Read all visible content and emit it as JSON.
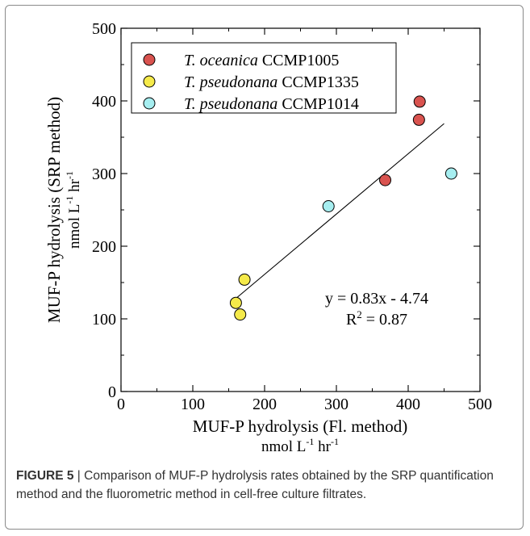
{
  "chart_data": {
    "type": "scatter",
    "xlabel": "MUF-P hydrolysis (Fl. method)",
    "xunit": {
      "base": "nmol L",
      "exp1": "-1",
      "mid": " hr",
      "exp2": "-1"
    },
    "ylabel": "MUF-P hydrolysis (SRP method)",
    "yunit": {
      "base": "nmol L",
      "exp1": "-1",
      "mid": " hr",
      "exp2": "-1"
    },
    "xlim": [
      0,
      500
    ],
    "ylim": [
      0,
      500
    ],
    "xticks": [
      "0",
      "100",
      "200",
      "300",
      "400",
      "500"
    ],
    "yticks": [
      "0",
      "100",
      "200",
      "300",
      "400",
      "500"
    ],
    "grid": false,
    "legend_position": "top-left",
    "series": [
      {
        "name_italic": "T. oceanica",
        "name_rest": "CCMP1005",
        "color": "#d9534f",
        "points": [
          {
            "x": 368,
            "y": 291
          },
          {
            "x": 416,
            "y": 399
          },
          {
            "x": 415,
            "y": 374
          }
        ]
      },
      {
        "name_italic": "T. pseudonana",
        "name_rest": "CCMP1335",
        "color": "#f5ea4a",
        "points": [
          {
            "x": 172,
            "y": 154
          },
          {
            "x": 160,
            "y": 122
          },
          {
            "x": 166,
            "y": 106
          }
        ]
      },
      {
        "name_italic": "T. pseudonana",
        "name_rest": "CCMP1014",
        "color": "#a6eef0",
        "points": [
          {
            "x": 289,
            "y": 255
          },
          {
            "x": 460,
            "y": 300
          }
        ]
      }
    ],
    "fit": {
      "slope": 0.83,
      "intercept": -4.74,
      "x_range": [
        160,
        450
      ]
    },
    "annotation_eq": "y = 0.83x - 4.74",
    "annotation_r2": {
      "base": "R",
      "exp": "2",
      "rest": " = 0.87"
    }
  },
  "caption": {
    "label": "FIGURE 5",
    "separator": " | ",
    "text": "Comparison of MUF-P hydrolysis rates obtained by the SRP quantification method and the fluorometric method in cell-free culture filtrates."
  }
}
